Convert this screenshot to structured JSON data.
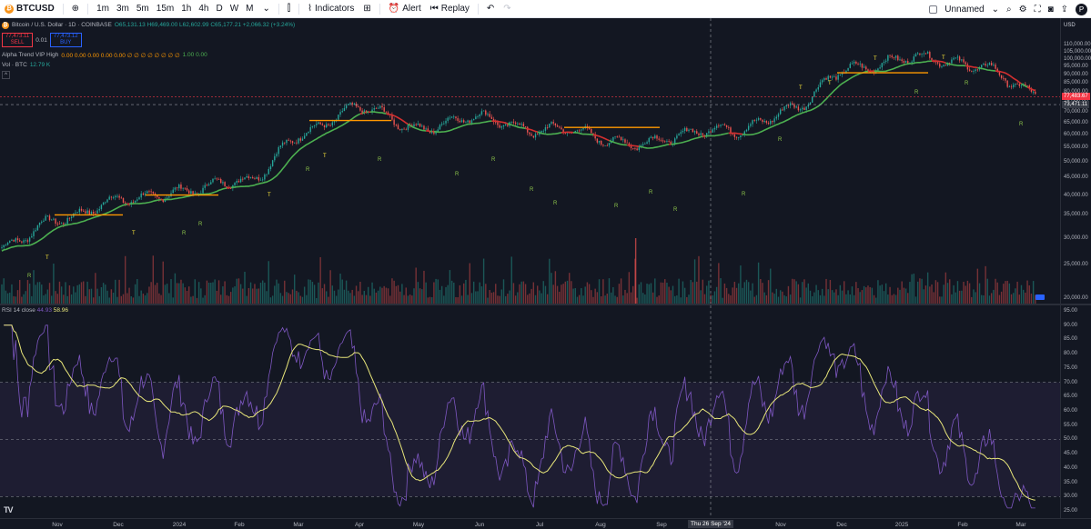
{
  "toolbar": {
    "symbol": "BTCUSD",
    "timeframes": [
      "1m",
      "3m",
      "5m",
      "15m",
      "1h",
      "4h",
      "D",
      "W",
      "M"
    ],
    "indicators_label": "Indicators",
    "alert_label": "Alert",
    "replay_label": "Replay",
    "layout_name": "Unnamed",
    "avatar_letter": "P"
  },
  "legend": {
    "title": "Bitcoin / U.S. Dollar · 1D · COINBASE",
    "ohlc": "O65,131.13 H69,469.00 L62,602.99 C65,177.21 +2,066.32 (+3.24%)",
    "sell_price": "77,473.11",
    "sell_label": "SELL",
    "spread": "0.01",
    "buy_price": "77,473.12",
    "buy_label": "BUY",
    "indicator_name": "Alpha Trend VIP High",
    "indicator_values": "0.00 0.00 0.00 0.00 0.00 ∅ ∅ ∅ ∅ ∅ ∅ ∅ ∅",
    "indicator_values2": "1.00 0.00",
    "vol_label": "Vol · BTC",
    "vol_value": "12.79 K"
  },
  "rsi_legend": {
    "name": "RSI 14 close",
    "value1": "44.93",
    "value2": "58.96"
  },
  "price_scale": {
    "currency": "USD",
    "labels": [
      "110,000.00",
      "105,000.00",
      "100,000.00",
      "95,000.00",
      "90,000.00",
      "85,000.00",
      "80,000.00",
      "75,000.00",
      "70,000.00",
      "65,000.00",
      "60,000.00",
      "55,000.00",
      "50,000.00",
      "45,000.00",
      "40,000.00",
      "35,000.00",
      "30,000.00",
      "25,000.00",
      "20,000.00"
    ],
    "last_price": "77,483.67",
    "last_price_color": "#f23645",
    "crosshair_price": "73,471.11"
  },
  "rsi_scale": {
    "labels": [
      "95.00",
      "90.00",
      "85.00",
      "80.00",
      "75.00",
      "70.00",
      "65.00",
      "60.00",
      "55.00",
      "50.00",
      "45.00",
      "40.00",
      "35.00",
      "30.00",
      "25.00"
    ]
  },
  "time_axis": {
    "labels": [
      "Nov",
      "Dec",
      "2024",
      "Feb",
      "Mar",
      "Apr",
      "May",
      "Jun",
      "Jul",
      "Aug",
      "Sep",
      "Nov",
      "Dec",
      "2025",
      "Feb",
      "Mar"
    ],
    "crosshair_date": "Thu 26 Sep '24"
  },
  "chart_data": {
    "type": "candlestick",
    "xlabel": "",
    "ylabel": "",
    "ylim": [
      20000,
      112000
    ],
    "log_scale": true,
    "grid": false,
    "signal_labels": [
      "T",
      "R"
    ],
    "colors": {
      "up": "#26a69a",
      "down": "#ef5350",
      "trend_up": "#4caf50",
      "trend_down": "#d32f2f",
      "level": "#ff9800",
      "rsi": "#7e57c2",
      "rsi_ma": "#e8e67a"
    },
    "close_series_dates": [
      "2023-10",
      "2023-11",
      "2023-12",
      "2024-01",
      "2024-02",
      "2024-03",
      "2024-04",
      "2024-05",
      "2024-06",
      "2024-07",
      "2024-08",
      "2024-09",
      "2024-10",
      "2024-11",
      "2024-12",
      "2025-01",
      "2025-02",
      "2025-03"
    ],
    "close_series": [
      27500,
      35000,
      38000,
      42000,
      43000,
      62000,
      71000,
      63000,
      67000,
      62000,
      58000,
      58000,
      63000,
      70000,
      96000,
      99000,
      98000,
      77483
    ],
    "rsi_ylim": [
      25,
      95
    ],
    "rsi_levels": [
      70,
      50,
      30
    ]
  }
}
